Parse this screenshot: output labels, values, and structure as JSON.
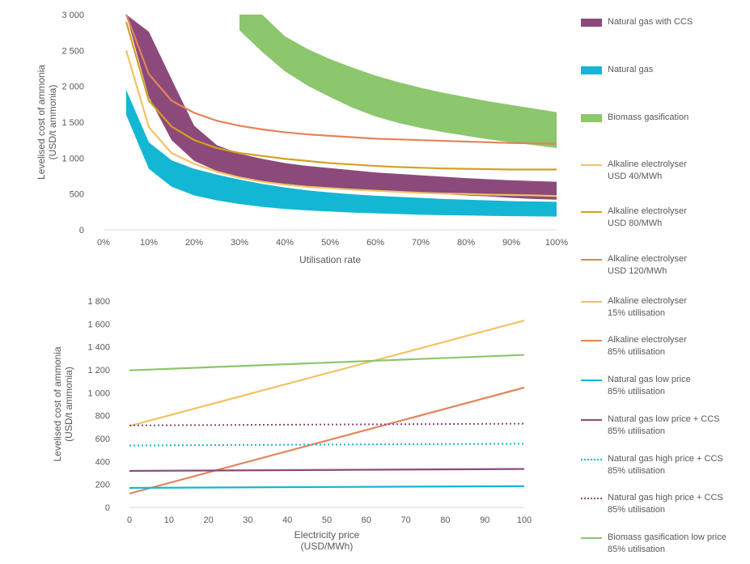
{
  "chart_data": [
    {
      "type": "area",
      "xlabel": "Utilisation rate",
      "ylabel": "Levelised cost of ammonia\n(USD/t ammonia)",
      "xlim": [
        0,
        100
      ],
      "ylim": [
        0,
        3000
      ],
      "x_ticks": [
        "0%",
        "10%",
        "20%",
        "30%",
        "40%",
        "50%",
        "60%",
        "70%",
        "80%",
        "90%",
        "100%"
      ],
      "y_ticks": [
        "0",
        "500",
        "1 000",
        "1 500",
        "2 000",
        "2 500",
        "3 000"
      ],
      "x": [
        5,
        10,
        15,
        20,
        25,
        30,
        35,
        40,
        45,
        50,
        55,
        60,
        65,
        70,
        75,
        80,
        85,
        90,
        95,
        100
      ],
      "bands": [
        {
          "name": "Biomass gasification",
          "color": "#8cc66d",
          "low": [
            null,
            null,
            null,
            null,
            null,
            2780,
            2480,
            2210,
            2010,
            1850,
            1700,
            1580,
            1490,
            1420,
            1360,
            1310,
            1260,
            1220,
            1180,
            1140
          ],
          "high": [
            null,
            null,
            null,
            null,
            null,
            3000,
            3000,
            2700,
            2520,
            2380,
            2260,
            2150,
            2060,
            1980,
            1910,
            1850,
            1790,
            1740,
            1690,
            1640
          ]
        },
        {
          "name": "Natural gas with CCS",
          "color": "#8c4a7a",
          "low": [
            null,
            1850,
            1250,
            960,
            820,
            740,
            680,
            630,
            600,
            575,
            555,
            540,
            525,
            510,
            495,
            480,
            465,
            445,
            430,
            420
          ],
          "high": [
            3000,
            2760,
            2100,
            1450,
            1180,
            1060,
            990,
            930,
            890,
            860,
            830,
            800,
            780,
            760,
            740,
            720,
            705,
            690,
            680,
            670
          ]
        },
        {
          "name": "Natural gas",
          "color": "#13b7d3",
          "low": [
            1600,
            850,
            600,
            480,
            410,
            360,
            320,
            290,
            270,
            255,
            240,
            230,
            220,
            210,
            205,
            200,
            195,
            190,
            188,
            185
          ],
          "high": [
            1950,
            1220,
            970,
            850,
            770,
            700,
            640,
            590,
            550,
            520,
            495,
            475,
            460,
            445,
            430,
            420,
            410,
            400,
            395,
            390
          ]
        }
      ],
      "series": [
        {
          "name": "Alkaline electrolyser\nUSD 40/MWh",
          "color": "#f2c264",
          "values": [
            2500,
            1430,
            1070,
            920,
            810,
            730,
            670,
            630,
            600,
            580,
            560,
            545,
            530,
            515,
            505,
            500,
            490,
            485,
            480,
            470
          ]
        },
        {
          "name": "Alkaline electrolyser\nUSD 80/MWh",
          "color": "#d4a020",
          "values": [
            2900,
            1800,
            1440,
            1250,
            1140,
            1070,
            1030,
            990,
            960,
            930,
            910,
            890,
            875,
            865,
            855,
            850,
            845,
            840,
            840,
            840
          ]
        },
        {
          "name": "Alkaline electrolyser\nUSD 120/MWh",
          "color": "#e3845a",
          "values": [
            3000,
            2170,
            1800,
            1630,
            1520,
            1450,
            1400,
            1360,
            1330,
            1310,
            1290,
            1270,
            1260,
            1250,
            1240,
            1230,
            1220,
            1210,
            1205,
            1200
          ]
        }
      ]
    },
    {
      "type": "line",
      "xlabel": "Electricity price\n(USD/MWh)",
      "ylabel": "Levelised cost of ammonia\n(USD/t ammonia)",
      "xlim": [
        0,
        100
      ],
      "ylim": [
        0,
        1800
      ],
      "x_ticks": [
        "0",
        "10",
        "20",
        "30",
        "40",
        "50",
        "60",
        "70",
        "80",
        "90",
        "100"
      ],
      "y_ticks": [
        "0",
        "200",
        "400",
        "600",
        "800",
        "1 000",
        "1 200",
        "1 400",
        "1 600",
        "1 800"
      ],
      "x": [
        0,
        100
      ],
      "series": [
        {
          "name": "Alkaline electrolyser\n15% utilisation",
          "color": "#f2c264",
          "dash": false,
          "values": [
            710,
            1630
          ]
        },
        {
          "name": "Alkaline electrolyser\n85% utilisation",
          "color": "#e3845a",
          "dash": false,
          "values": [
            120,
            1045
          ]
        },
        {
          "name": "Natural gas low price\n85% utilisation",
          "color": "#13b7d3",
          "dash": false,
          "values": [
            170,
            185
          ]
        },
        {
          "name": "Natural gas low price + CCS\n85% utilisation",
          "color": "#8c4a7a",
          "dash": false,
          "values": [
            318,
            335
          ]
        },
        {
          "name": "Natural gas high price + CCS\n85% utilisation",
          "color": "#13b7d3",
          "dash": true,
          "values": [
            540,
            555
          ]
        },
        {
          "name": "Natural gas high price + CCS\n85% utilisation",
          "color": "#8c4a7a",
          "dash": true,
          "values": [
            715,
            730
          ]
        },
        {
          "name": "Biomass gasification low price\n85% utilisation",
          "color": "#8cc66d",
          "dash": false,
          "values": [
            1195,
            1330
          ]
        }
      ]
    }
  ],
  "legend": [
    {
      "label": "Natural gas with CCS",
      "color": "#8c4a7a",
      "kind": "band"
    },
    {
      "label": "Natural gas",
      "color": "#13b7d3",
      "kind": "band"
    },
    {
      "label": "Biomass gasification",
      "color": "#8cc66d",
      "kind": "band"
    },
    {
      "label": "Alkaline electrolyser\nUSD 40/MWh",
      "color": "#f2c264",
      "kind": "line"
    },
    {
      "label": "Alkaline electrolyser\nUSD 80/MWh",
      "color": "#d4a020",
      "kind": "line"
    },
    {
      "label": "Alkaline electrolyser\nUSD 120/MWh",
      "color": "#e3845a",
      "kind": "line"
    },
    {
      "label": "Alkaline electrolyser\n15% utilisation",
      "color": "#f2c264",
      "kind": "line"
    },
    {
      "label": "Alkaline electrolyser\n85% utilisation",
      "color": "#e3845a",
      "kind": "line"
    },
    {
      "label": "Natural gas low price\n85% utilisation",
      "color": "#13b7d3",
      "kind": "line"
    },
    {
      "label": "Natural gas low price + CCS\n85% utilisation",
      "color": "#8c4a7a",
      "kind": "line"
    },
    {
      "label": "Natural gas high price + CCS\n85% utilisation",
      "color": "#13b7d3",
      "kind": "dotted"
    },
    {
      "label": "Natural gas high price + CCS\n85% utilisation",
      "color": "#8c4a7a",
      "kind": "dotted"
    },
    {
      "label": "Biomass gasification low price\n85% utilisation",
      "color": "#8cc66d",
      "kind": "line"
    }
  ]
}
